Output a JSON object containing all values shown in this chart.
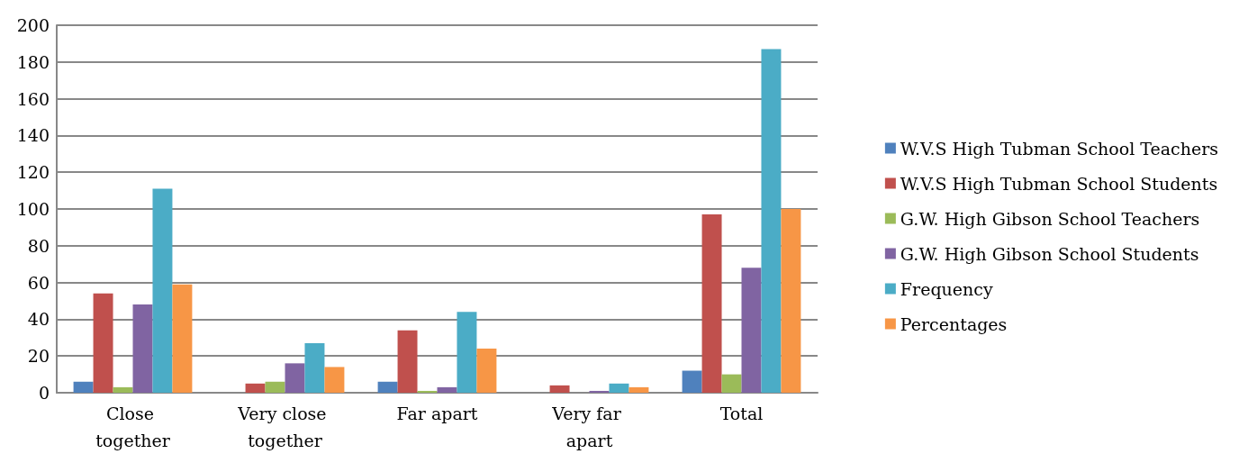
{
  "chart_data": {
    "type": "bar",
    "categories": [
      "Close together",
      "Very close together",
      "Far apart",
      "Very far apart",
      "Total"
    ],
    "series": [
      {
        "name": "W.V.S High Tubman School Teachers",
        "color": "#4f81bd",
        "values": [
          6,
          0,
          6,
          0,
          12
        ]
      },
      {
        "name": "W.V.S High Tubman School Students",
        "color": "#c0504d",
        "values": [
          54,
          5,
          34,
          4,
          97
        ]
      },
      {
        "name": "G.W. High Gibson School Teachers",
        "color": "#9bbb59",
        "values": [
          3,
          6,
          1,
          0,
          10
        ]
      },
      {
        "name": "G.W. High Gibson School Students",
        "color": "#8064a2",
        "values": [
          48,
          16,
          3,
          1,
          68
        ]
      },
      {
        "name": "Frequency",
        "color": "#4bacc6",
        "values": [
          111,
          27,
          44,
          5,
          187
        ]
      },
      {
        "name": "Percentages",
        "color": "#f79646",
        "values": [
          59,
          14,
          24,
          3,
          100
        ]
      }
    ],
    "ylim": [
      0,
      200
    ],
    "yticks": [
      0,
      20,
      40,
      60,
      80,
      100,
      120,
      140,
      160,
      180,
      200
    ],
    "grid": "y",
    "legend": "right"
  }
}
